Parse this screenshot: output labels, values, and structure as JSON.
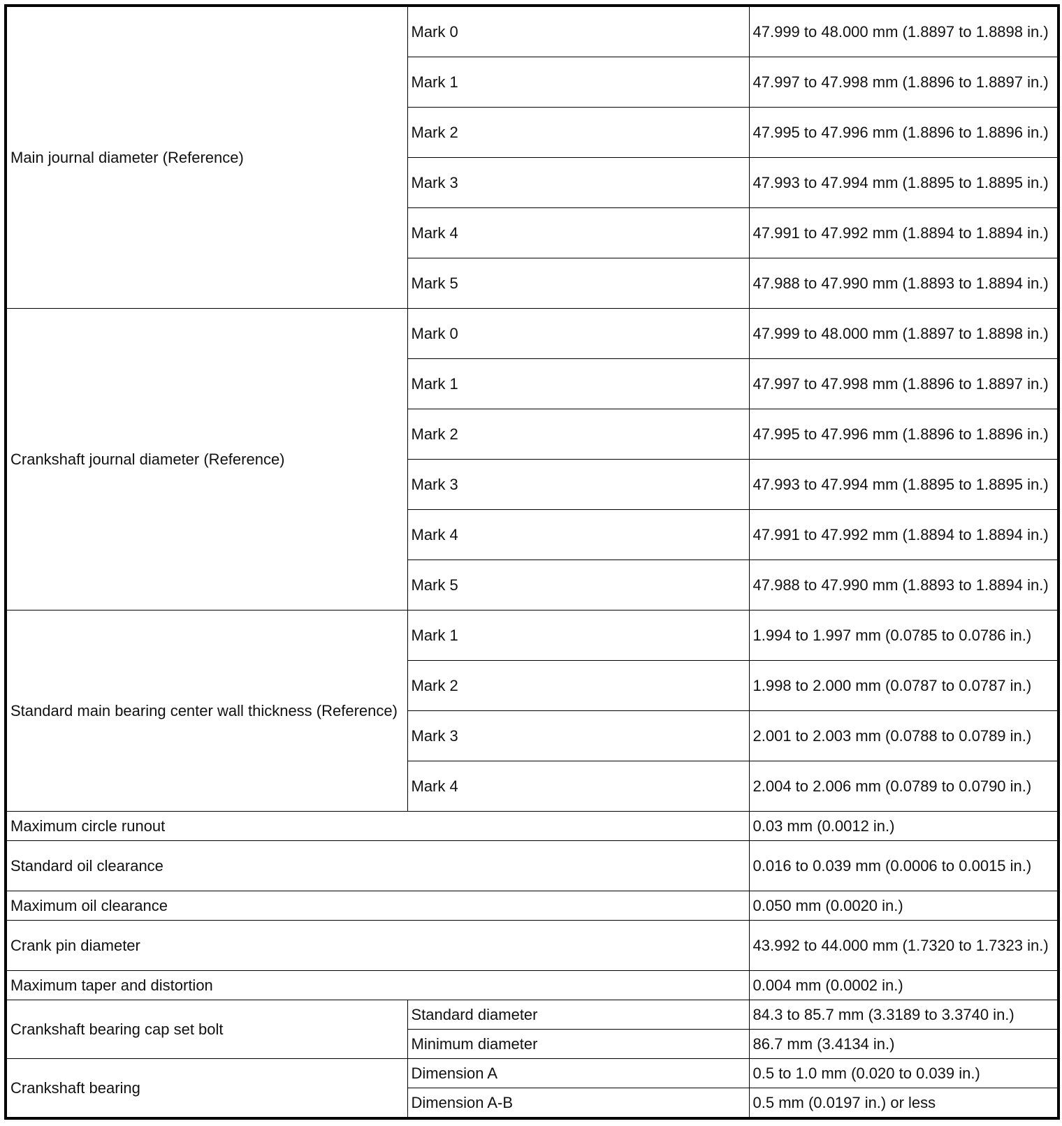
{
  "groups": [
    {
      "label": "Main journal diameter (Reference)",
      "rows": [
        {
          "sub": "Mark 0",
          "value": "47.999 to 48.000 mm (1.8897 to 1.8898 in.)"
        },
        {
          "sub": "Mark 1",
          "value": "47.997 to 47.998 mm (1.8896 to 1.8897 in.)"
        },
        {
          "sub": "Mark 2",
          "value": "47.995 to 47.996 mm (1.8896 to 1.8896 in.)"
        },
        {
          "sub": "Mark 3",
          "value": "47.993 to 47.994 mm (1.8895 to 1.8895 in.)"
        },
        {
          "sub": "Mark 4",
          "value": "47.991 to 47.992 mm (1.8894 to 1.8894 in.)"
        },
        {
          "sub": "Mark 5",
          "value": "47.988 to 47.990 mm (1.8893 to 1.8894 in.)"
        }
      ]
    },
    {
      "label": "Crankshaft journal diameter (Reference)",
      "rows": [
        {
          "sub": "Mark 0",
          "value": "47.999 to 48.000 mm (1.8897 to 1.8898 in.)"
        },
        {
          "sub": "Mark 1",
          "value": "47.997 to 47.998 mm (1.8896 to 1.8897 in.)"
        },
        {
          "sub": "Mark 2",
          "value": "47.995 to 47.996 mm (1.8896 to 1.8896 in.)"
        },
        {
          "sub": "Mark 3",
          "value": "47.993 to 47.994 mm (1.8895 to 1.8895 in.)"
        },
        {
          "sub": "Mark 4",
          "value": "47.991 to 47.992 mm (1.8894 to 1.8894 in.)"
        },
        {
          "sub": "Mark 5",
          "value": "47.988 to 47.990 mm (1.8893 to 1.8894 in.)"
        }
      ]
    },
    {
      "label": "Standard main bearing center wall thickness (Reference)",
      "rows": [
        {
          "sub": "Mark 1",
          "value": "1.994 to 1.997 mm (0.0785 to 0.0786 in.)"
        },
        {
          "sub": "Mark 2",
          "value": "1.998 to 2.000 mm (0.0787 to 0.0787 in.)"
        },
        {
          "sub": "Mark 3",
          "value": "2.001 to 2.003 mm (0.0788 to 0.0789 in.)"
        },
        {
          "sub": "Mark 4",
          "value": "2.004 to 2.006 mm (0.0789 to 0.0790 in.)"
        }
      ]
    }
  ],
  "singles": [
    {
      "label": "Maximum circle runout",
      "value": "0.03 mm (0.0012 in.)"
    },
    {
      "label": "Standard oil clearance",
      "value": "0.016 to 0.039 mm (0.0006 to 0.0015 in.)"
    },
    {
      "label": "Maximum oil clearance",
      "value": "0.050 mm (0.0020 in.)"
    },
    {
      "label": "Crank pin diameter",
      "value": "43.992 to 44.000 mm (1.7320 to 1.7323 in.)"
    },
    {
      "label": "Maximum taper and distortion",
      "value": "0.004 mm (0.0002 in.)"
    }
  ],
  "groups2": [
    {
      "label": "Crankshaft bearing cap set bolt",
      "rows": [
        {
          "sub": "Standard diameter",
          "value": "84.3 to 85.7 mm (3.3189 to 3.3740 in.)"
        },
        {
          "sub": "Minimum diameter",
          "value": "86.7 mm (3.4134 in.)"
        }
      ]
    },
    {
      "label": "Crankshaft bearing",
      "rows": [
        {
          "sub": "Dimension A",
          "value": "0.5 to 1.0 mm (0.020 to 0.039 in.)"
        },
        {
          "sub": "Dimension A-B",
          "value": "0.5 mm (0.0197 in.) or less"
        }
      ]
    }
  ]
}
